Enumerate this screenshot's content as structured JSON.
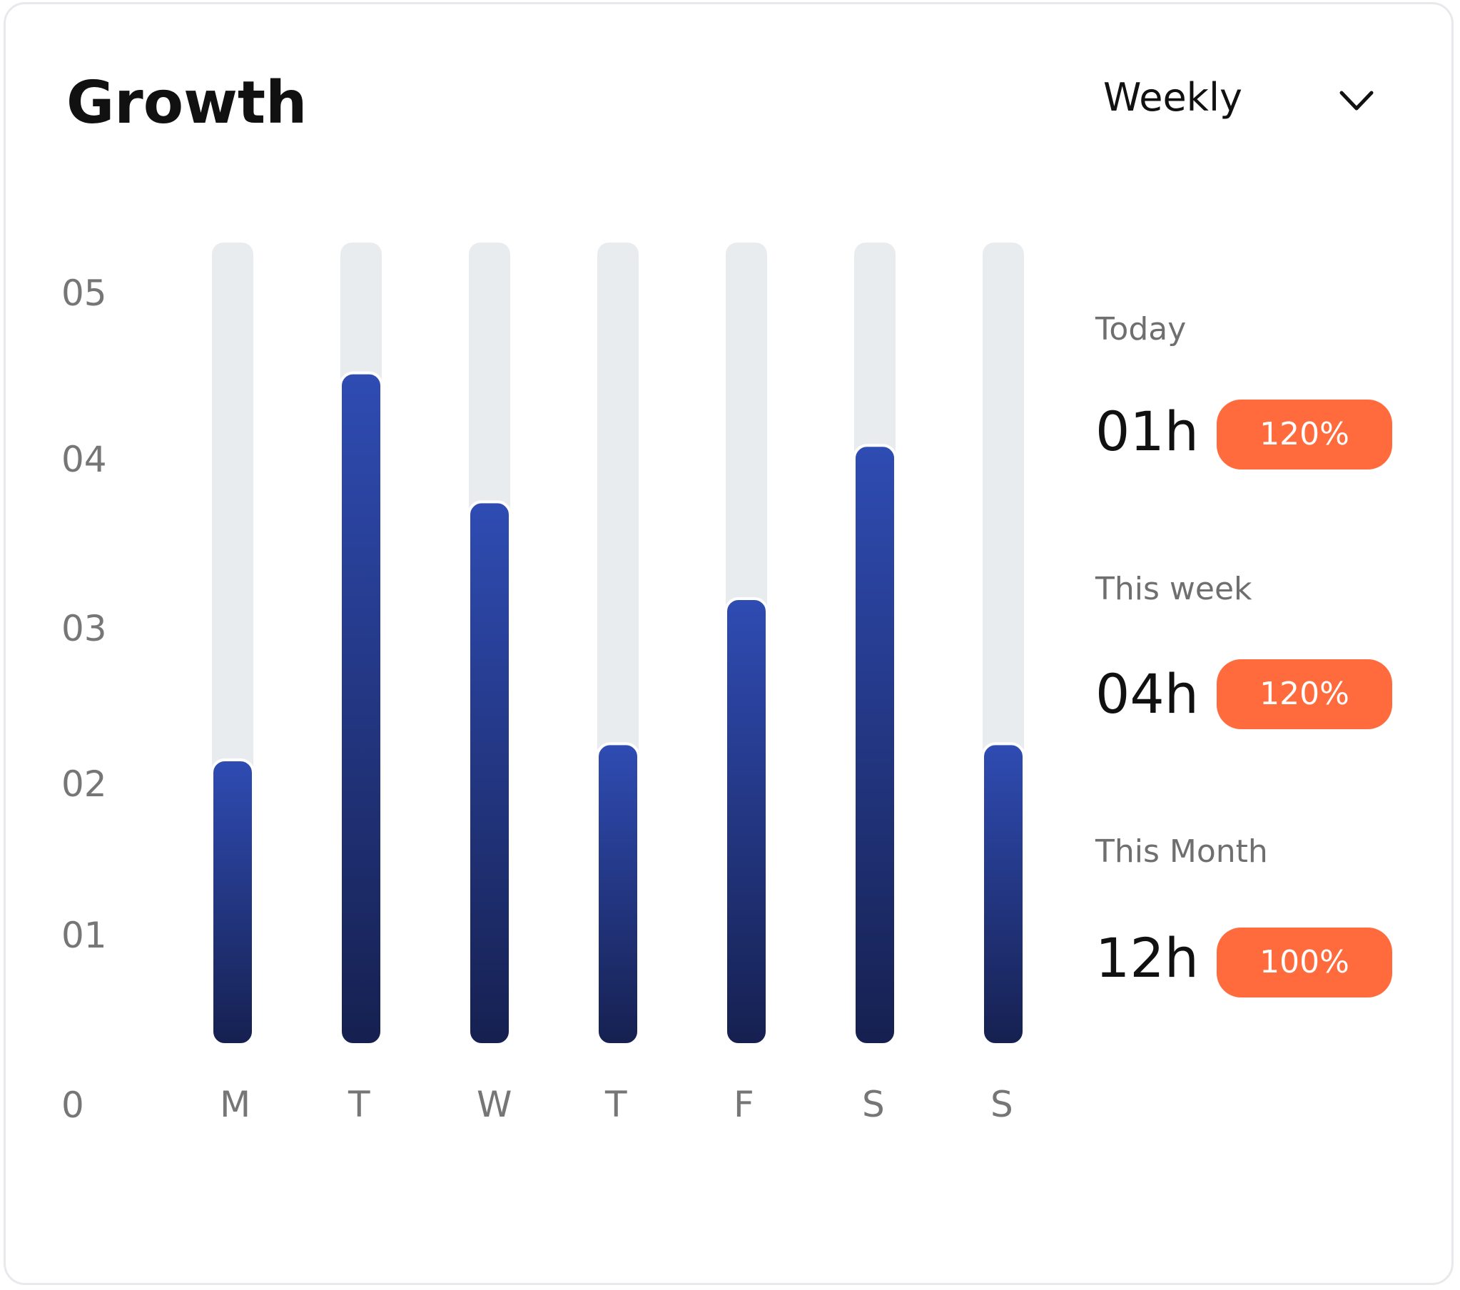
{
  "title": "Growth",
  "period": {
    "selected": "Weekly",
    "icon": "chevron-down-icon"
  },
  "colors": {
    "bar_top": "#2f4cb3",
    "bar_bottom": "#162050",
    "track": "#e9ecef",
    "badge": "#ff6b3d",
    "axis_text": "#767676"
  },
  "chart_data": {
    "type": "bar",
    "categories": [
      "M",
      "T",
      "W",
      "T",
      "F",
      "S",
      "S"
    ],
    "values": [
      1.5,
      3.9,
      3.1,
      1.6,
      2.5,
      3.45,
      1.6
    ],
    "ylim": [
      0,
      5
    ],
    "yticks": [
      "0",
      "01",
      "02",
      "03",
      "04",
      "05"
    ],
    "title": "",
    "xlabel": "",
    "ylabel": "",
    "grid": false
  },
  "stats": [
    {
      "label": "Today",
      "value": "01h",
      "badge": "120%"
    },
    {
      "label": "This week",
      "value": "04h",
      "badge": "120%"
    },
    {
      "label": "This Month",
      "value": "12h",
      "badge": "100%"
    }
  ]
}
